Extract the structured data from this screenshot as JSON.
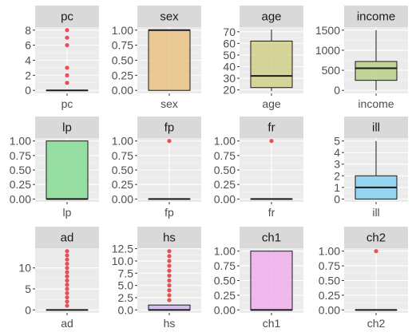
{
  "chart_data": [
    {
      "type": "boxplot",
      "title": "pc",
      "category": "pc",
      "fill": "#c9c9c9",
      "ticks": [
        0,
        2,
        4,
        6,
        8
      ],
      "ylim": [
        -0.4,
        8.4
      ],
      "box": {
        "min": 0,
        "q1": 0,
        "median": 0,
        "q3": 0,
        "max": 0
      },
      "outliers": [
        1,
        2,
        3,
        6,
        7,
        8
      ]
    },
    {
      "type": "boxplot",
      "title": "sex",
      "category": "sex",
      "fill": "#e9c48b",
      "ticks": [
        "0.00",
        "0.25",
        "0.50",
        "0.75",
        "1.00"
      ],
      "ylim": [
        -0.05,
        1.05
      ],
      "box": {
        "min": 0,
        "q1": 0,
        "median": 1,
        "q3": 1,
        "max": 1
      },
      "outliers": []
    },
    {
      "type": "boxplot",
      "title": "age",
      "category": "age",
      "fill": "#d3d18f",
      "ticks": [
        20,
        30,
        40,
        50,
        60,
        70
      ],
      "ylim": [
        17,
        74
      ],
      "box": {
        "min": 19,
        "q1": 22,
        "median": 32,
        "q3": 62,
        "max": 72
      },
      "outliers": []
    },
    {
      "type": "boxplot",
      "title": "income",
      "category": "income",
      "fill": "#bdd38f",
      "ticks": [
        0,
        500,
        1000,
        1500
      ],
      "ylim": [
        -75,
        1575
      ],
      "box": {
        "min": 0,
        "q1": 250,
        "median": 550,
        "q3": 720,
        "max": 1500
      },
      "outliers": []
    },
    {
      "type": "boxplot",
      "title": "lp",
      "category": "lp",
      "fill": "#8ddc9a",
      "ticks": [
        "0.00",
        "0.25",
        "0.50",
        "0.75",
        "1.00"
      ],
      "ylim": [
        -0.05,
        1.05
      ],
      "box": {
        "min": 0,
        "q1": 0,
        "median": 0,
        "q3": 1,
        "max": 1
      },
      "outliers": []
    },
    {
      "type": "boxplot",
      "title": "fp",
      "category": "fp",
      "fill": "#8ddcc0",
      "ticks": [
        "0.00",
        "0.25",
        "0.50",
        "0.75",
        "1.00"
      ],
      "ylim": [
        -0.05,
        1.05
      ],
      "box": {
        "min": 0,
        "q1": 0,
        "median": 0,
        "q3": 0,
        "max": 0
      },
      "outliers": [
        1
      ]
    },
    {
      "type": "boxplot",
      "title": "fr",
      "category": "fr",
      "fill": "#8dd8dc",
      "ticks": [
        "0.00",
        "0.25",
        "0.50",
        "0.75",
        "1.00"
      ],
      "ylim": [
        -0.05,
        1.05
      ],
      "box": {
        "min": 0,
        "q1": 0,
        "median": 0,
        "q3": 0,
        "max": 0
      },
      "outliers": [
        1
      ]
    },
    {
      "type": "boxplot",
      "title": "ill",
      "category": "ill",
      "fill": "#8dd3f0",
      "ticks": [
        0,
        1,
        2,
        3,
        4,
        5
      ],
      "ylim": [
        -0.25,
        5.25
      ],
      "box": {
        "min": 0,
        "q1": 0,
        "median": 1,
        "q3": 2,
        "max": 5
      },
      "outliers": []
    },
    {
      "type": "boxplot",
      "title": "ad",
      "category": "ad",
      "fill": "#b9bff0",
      "ticks": [
        0,
        5,
        10
      ],
      "ylim": [
        -0.7,
        14.7
      ],
      "box": {
        "min": 0,
        "q1": 0,
        "median": 0,
        "q3": 0,
        "max": 0
      },
      "outliers": [
        1,
        2,
        3,
        4,
        5,
        6,
        7,
        8,
        9,
        10,
        11,
        12,
        13,
        14
      ]
    },
    {
      "type": "boxplot",
      "title": "hs",
      "category": "hs",
      "fill": "#d2b9f0",
      "ticks": [
        "0.0",
        "2.5",
        "5.0",
        "7.5",
        "10.0",
        "12.5"
      ],
      "ylim": [
        -0.6,
        12.6
      ],
      "box": {
        "min": 0,
        "q1": 0,
        "median": 0,
        "q3": 1,
        "max": 1
      },
      "outliers": [
        2,
        3,
        4,
        5,
        6,
        7,
        8,
        9,
        10,
        11,
        12
      ]
    },
    {
      "type": "boxplot",
      "title": "ch1",
      "category": "ch1",
      "fill": "#f0b3ec",
      "ticks": [
        "0.00",
        "0.25",
        "0.50",
        "0.75",
        "1.00"
      ],
      "ylim": [
        -0.05,
        1.05
      ],
      "box": {
        "min": 0,
        "q1": 0,
        "median": 0,
        "q3": 1,
        "max": 1
      },
      "outliers": []
    },
    {
      "type": "boxplot",
      "title": "ch2",
      "category": "ch2",
      "fill": "#f0b3d2",
      "ticks": [
        "0.00",
        "0.25",
        "0.50",
        "0.75",
        "1.00"
      ],
      "ylim": [
        -0.05,
        1.05
      ],
      "box": {
        "min": 0,
        "q1": 0,
        "median": 0,
        "q3": 0,
        "max": 0
      },
      "outliers": [
        1
      ]
    }
  ],
  "style": {
    "panel_background": "#ebebeb",
    "strip_background": "#d9d9d9",
    "grid_color": "#ffffff",
    "outlier_color": "#e31a1c",
    "box_outline": "#1a1a1a"
  }
}
